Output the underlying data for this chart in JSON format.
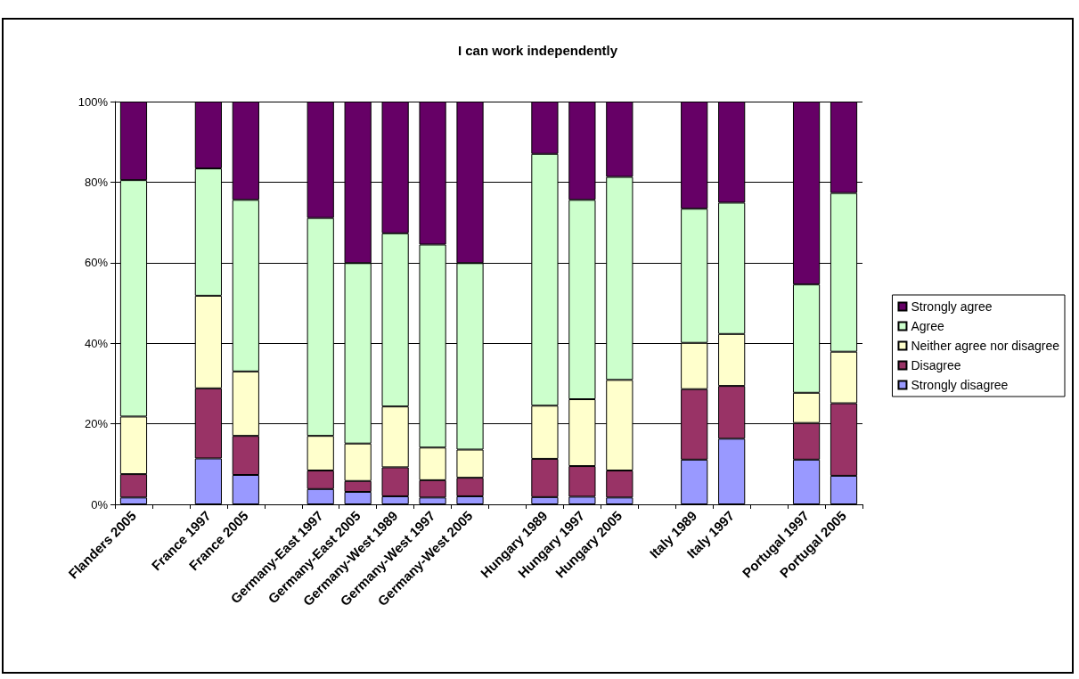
{
  "chart_data": {
    "type": "bar",
    "title": "I can work independently",
    "stacked": true,
    "categories": [
      "Flanders 2005",
      null,
      "France 1997",
      "France 2005",
      null,
      "Germany-East 1997",
      "Germany-East 2005",
      "Germany-West 1989",
      "Germany-West 1997",
      "Germany-West 2005",
      null,
      "Hungary 1989",
      "Hungary 1997",
      "Hungary 2005",
      null,
      "Italy 1989",
      "Italy 1997",
      null,
      "Portugal 1997",
      "Portugal 2005"
    ],
    "series": [
      {
        "name": "Strongly disagree",
        "color": "#9999ff",
        "values": [
          1.7,
          null,
          11.4,
          7.3,
          null,
          3.8,
          3.1,
          2.0,
          1.7,
          2.0,
          null,
          1.8,
          1.9,
          1.7,
          null,
          11.1,
          16.3,
          null,
          11.1,
          7.1
        ]
      },
      {
        "name": "Disagree",
        "color": "#993366",
        "values": [
          5.8,
          null,
          17.4,
          9.7,
          null,
          4.6,
          2.7,
          7.2,
          4.3,
          4.6,
          null,
          9.5,
          7.6,
          6.7,
          null,
          17.5,
          13.1,
          null,
          9.1,
          18.0
        ]
      },
      {
        "name": "Neither agree nor disagree",
        "color": "#ffffcc",
        "values": [
          14.3,
          null,
          23.0,
          16.0,
          null,
          8.6,
          9.3,
          15.1,
          8.1,
          7.0,
          null,
          13.2,
          16.6,
          22.5,
          null,
          11.5,
          12.9,
          null,
          7.5,
          12.8
        ]
      },
      {
        "name": "Agree",
        "color": "#ccffcc",
        "values": [
          58.7,
          null,
          31.6,
          42.6,
          null,
          54.1,
          44.8,
          43.0,
          50.4,
          46.3,
          null,
          62.5,
          49.5,
          50.4,
          null,
          33.3,
          32.6,
          null,
          26.9,
          39.4
        ]
      },
      {
        "name": "Strongly agree",
        "color": "#660066",
        "values": [
          19.5,
          null,
          16.6,
          24.4,
          null,
          28.9,
          40.1,
          32.7,
          35.5,
          40.1,
          null,
          13.0,
          24.4,
          18.7,
          null,
          26.6,
          25.1,
          null,
          45.4,
          22.7
        ]
      }
    ],
    "ylim": [
      0,
      100
    ],
    "yticks": [
      {
        "value": 0,
        "label": "0%"
      },
      {
        "value": 20,
        "label": "20%"
      },
      {
        "value": 40,
        "label": "40%"
      },
      {
        "value": 60,
        "label": "60%"
      },
      {
        "value": 80,
        "label": "80%"
      },
      {
        "value": 100,
        "label": "100%"
      }
    ],
    "grid": "y",
    "legend": "right"
  }
}
